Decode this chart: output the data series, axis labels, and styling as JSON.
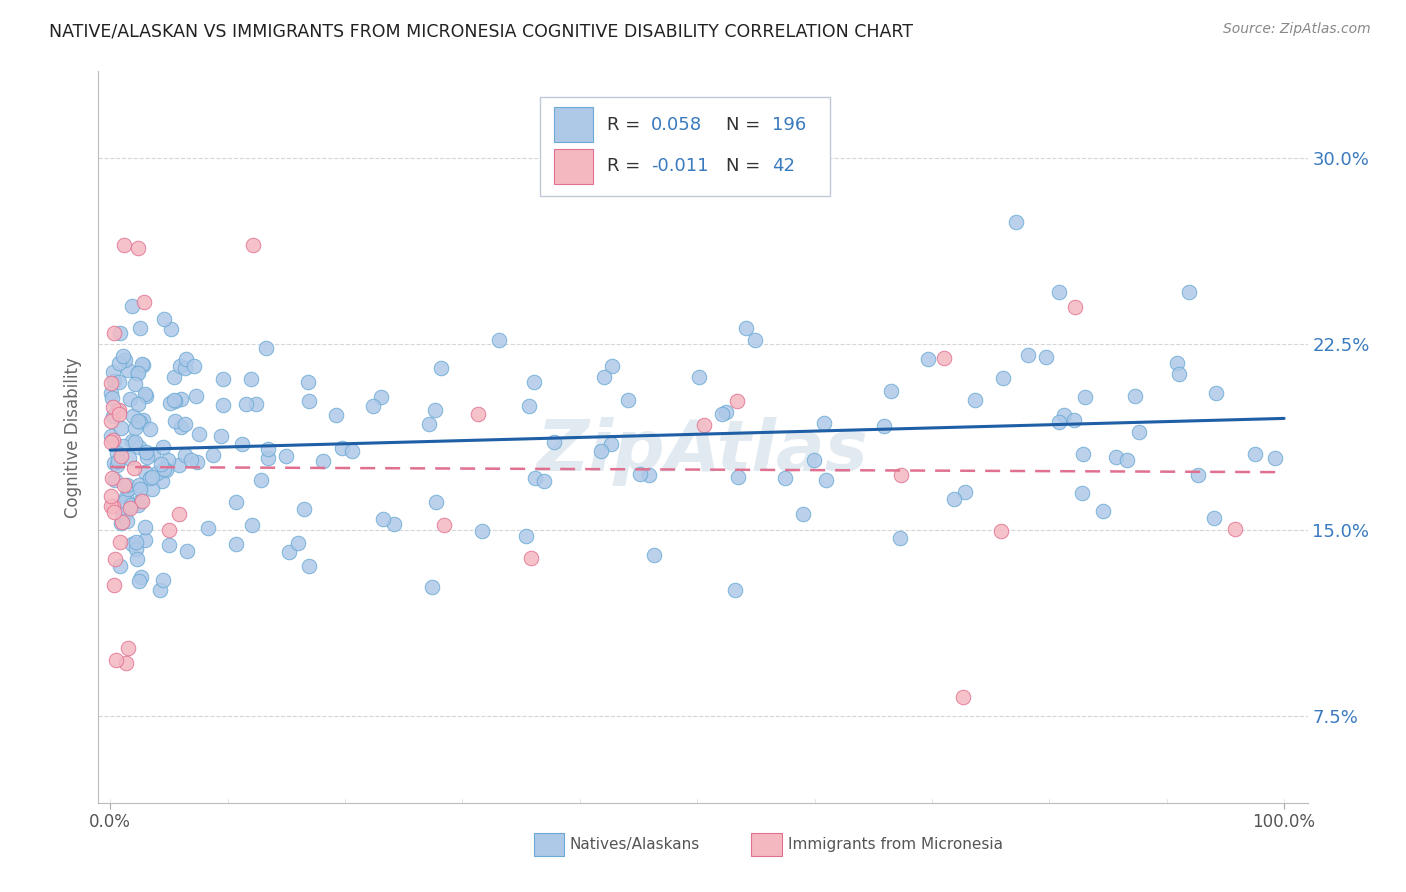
{
  "title": "NATIVE/ALASKAN VS IMMIGRANTS FROM MICRONESIA COGNITIVE DISABILITY CORRELATION CHART",
  "source": "Source: ZipAtlas.com",
  "ylabel": "Cognitive Disability",
  "y_ticks": [
    0.075,
    0.15,
    0.225,
    0.3
  ],
  "y_tick_labels": [
    "7.5%",
    "15.0%",
    "22.5%",
    "30.0%"
  ],
  "blue_R": 0.058,
  "blue_N": 196,
  "pink_R": -0.011,
  "pink_N": 42,
  "blue_color": "#aec8e8",
  "blue_edge": "#6aaad4",
  "pink_color": "#f4b8c1",
  "pink_edge": "#e07090",
  "blue_line_color": "#1f5fa6",
  "pink_line_color": "#e07090",
  "legend_label_blue": "Natives/Alaskans",
  "legend_label_pink": "Immigrants from Micronesia",
  "background_color": "#ffffff",
  "grid_color": "#cccccc",
  "title_color": "#222222",
  "stat_color": "#3a7abf",
  "watermark": "ZipAtlas",
  "ylim_min": 0.04,
  "ylim_max": 0.335,
  "xlim_min": -0.01,
  "xlim_max": 1.02
}
